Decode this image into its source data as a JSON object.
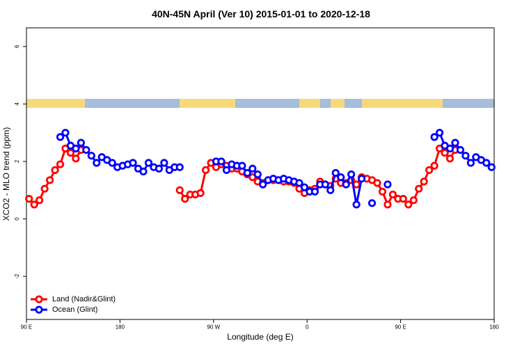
{
  "chart_data": {
    "type": "line",
    "title": "40N-45N April (Ver 10)   2015-01-01 to 2020-12-18",
    "x_label": "Longitude (deg E)",
    "y_label": "XCO2 - MLO trend (ppm)",
    "xlim": [
      90,
      540
    ],
    "ylim": [
      -3.5,
      6.65
    ],
    "xticks": [
      {
        "value": 90,
        "label": "90 E"
      },
      180,
      {
        "value": 270,
        "label": "90 W"
      },
      {
        "value": 360,
        "label": "0"
      },
      {
        "value": 450,
        "label": "90 E"
      },
      {
        "value": 540,
        "label": "180"
      }
    ],
    "yticks": [
      -2,
      0,
      2,
      4,
      6
    ],
    "legend": "bottomleft",
    "x": [
      92.5,
      97.5,
      102.5,
      107.5,
      112.5,
      117.5,
      122.5,
      127.5,
      132.5,
      137.5,
      142.5,
      147.5,
      152.5,
      157.5,
      162.5,
      167.5,
      172.5,
      177.5,
      182.5,
      187.5,
      192.5,
      197.5,
      202.5,
      207.5,
      212.5,
      217.5,
      222.5,
      227.5,
      232.5,
      237.5,
      242.5,
      247.5,
      252.5,
      257.5,
      262.5,
      267.5,
      272.5,
      277.5,
      282.5,
      287.5,
      292.5,
      297.5,
      302.5,
      307.5,
      312.5,
      317.5,
      322.5,
      327.5,
      332.5,
      337.5,
      342.5,
      347.5,
      352.5,
      357.5,
      362.5,
      367.5,
      372.5,
      377.5,
      382.5,
      387.5,
      392.5,
      397.5,
      402.5,
      407.5,
      412.5,
      417.5,
      422.5,
      427.5,
      432.5,
      437.5,
      442.5,
      447.5,
      452.5,
      457.5,
      462.5,
      467.5,
      472.5,
      477.5,
      482.5,
      487.5,
      492.5,
      497.5,
      502.5,
      507.5,
      512.5,
      517.5,
      522.5,
      527.5,
      532.5,
      537.5
    ],
    "series": [
      {
        "name": "Land (Nadir&Glint)",
        "color": "#ff0000",
        "values": [
          0.7,
          0.5,
          0.65,
          1.05,
          1.35,
          1.7,
          1.9,
          2.45,
          2.3,
          2.1,
          2.4,
          null,
          null,
          null,
          null,
          null,
          null,
          null,
          null,
          null,
          null,
          null,
          null,
          null,
          null,
          null,
          null,
          null,
          null,
          1.0,
          0.7,
          0.85,
          0.85,
          0.9,
          1.7,
          1.95,
          1.8,
          1.9,
          1.85,
          1.75,
          1.75,
          1.65,
          1.55,
          1.45,
          1.3,
          1.25,
          1.35,
          1.35,
          1.35,
          1.3,
          1.3,
          1.25,
          1.05,
          0.9,
          1.0,
          1.05,
          1.3,
          1.2,
          1.15,
          1.4,
          1.25,
          1.25,
          1.35,
          1.2,
          1.45,
          1.4,
          1.35,
          1.25,
          0.95,
          0.5,
          0.85,
          0.7,
          0.7,
          0.5,
          0.65,
          1.05,
          1.3,
          1.7,
          1.85,
          2.45,
          2.3,
          2.1,
          2.4,
          null,
          null,
          null,
          null,
          null,
          null,
          null
        ]
      },
      {
        "name": "Ocean (Glint)",
        "color": "#0000ff",
        "values": [
          null,
          null,
          null,
          null,
          null,
          null,
          2.85,
          3.0,
          2.55,
          2.45,
          2.65,
          2.4,
          2.2,
          1.95,
          2.15,
          2.05,
          1.95,
          1.8,
          1.85,
          1.9,
          1.95,
          1.75,
          1.65,
          1.95,
          1.8,
          1.75,
          1.95,
          1.7,
          1.8,
          1.8,
          null,
          null,
          null,
          null,
          null,
          null,
          2.0,
          2.0,
          1.7,
          1.9,
          1.85,
          1.85,
          1.6,
          1.75,
          1.55,
          1.2,
          1.35,
          1.4,
          1.35,
          1.4,
          1.35,
          1.3,
          1.25,
          1.1,
          0.95,
          0.95,
          1.2,
          1.2,
          1.0,
          1.6,
          1.45,
          1.2,
          1.55,
          0.5,
          1.4,
          null,
          0.55,
          null,
          null,
          1.2,
          null,
          null,
          null,
          null,
          null,
          null,
          null,
          null,
          2.85,
          3.0,
          2.55,
          2.45,
          2.65,
          2.4,
          2.2,
          1.95,
          2.15,
          2.05,
          1.95,
          1.8
        ]
      }
    ]
  }
}
